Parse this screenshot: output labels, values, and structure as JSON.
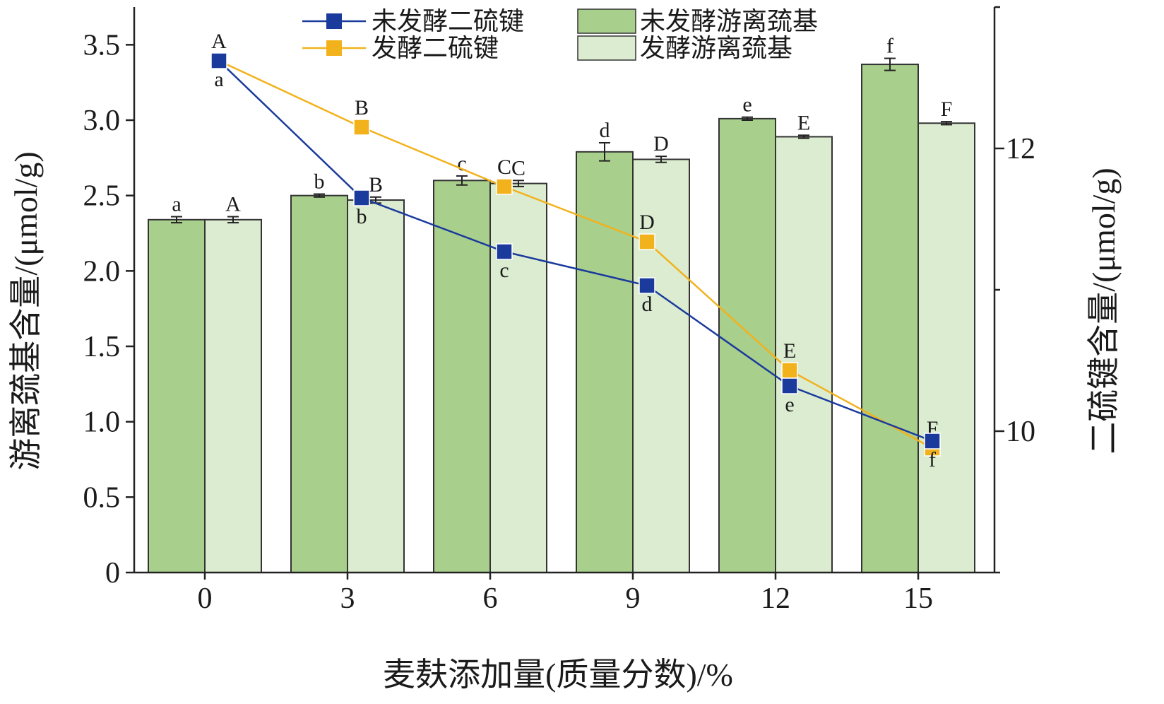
{
  "chart_data": {
    "type": "bar",
    "xlabel": "麦麸添加量(质量分数)/%",
    "ylabel": "游离巯基含量/(μmol/g)",
    "y2label": "二硫键含量/(μmol/g)",
    "categories": [
      "0",
      "3",
      "6",
      "9",
      "12",
      "15"
    ],
    "ylim": [
      0,
      3.75
    ],
    "yticks": [
      "0",
      "0.5",
      "1.0",
      "1.5",
      "2.0",
      "2.5",
      "3.0",
      "3.5"
    ],
    "y2lim": [
      9,
      13
    ],
    "y2ticks": [
      "10",
      "12"
    ],
    "legend_position": "top",
    "colors": {
      "bar_unfermented": "#a9cf8d",
      "bar_fermented": "#dcecd1",
      "line_unfermented": "#1a3a9c",
      "line_fermented": "#f2b21c",
      "outline": "#333333"
    },
    "bar_series": [
      {
        "name": "未发酵游离巯基",
        "values": [
          2.34,
          2.5,
          2.6,
          2.79,
          3.01,
          3.37
        ],
        "errors": [
          0.02,
          0.01,
          0.03,
          0.06,
          0.01,
          0.04
        ],
        "letters": [
          "a",
          "b",
          "c",
          "d",
          "e",
          "f"
        ]
      },
      {
        "name": "发酵游离巯基",
        "values": [
          2.34,
          2.47,
          2.58,
          2.74,
          2.89,
          2.98
        ],
        "errors": [
          0.02,
          0.02,
          0.02,
          0.02,
          0.01,
          0.01
        ],
        "letters": [
          "A",
          "B",
          "C",
          "D",
          "E",
          "F"
        ]
      }
    ],
    "line_series": [
      {
        "name": "未发酵二硫键",
        "axis": "right",
        "values": [
          12.62,
          11.65,
          11.27,
          11.03,
          10.32,
          9.93
        ],
        "letters": [
          "a",
          "b",
          "c",
          "d",
          "e",
          "f"
        ]
      },
      {
        "name": "发酵二硫键",
        "axis": "right",
        "values": [
          12.62,
          12.15,
          11.73,
          11.34,
          10.43,
          9.88
        ],
        "letters": [
          "A",
          "B",
          "C",
          "D",
          "E",
          "F"
        ]
      }
    ]
  }
}
